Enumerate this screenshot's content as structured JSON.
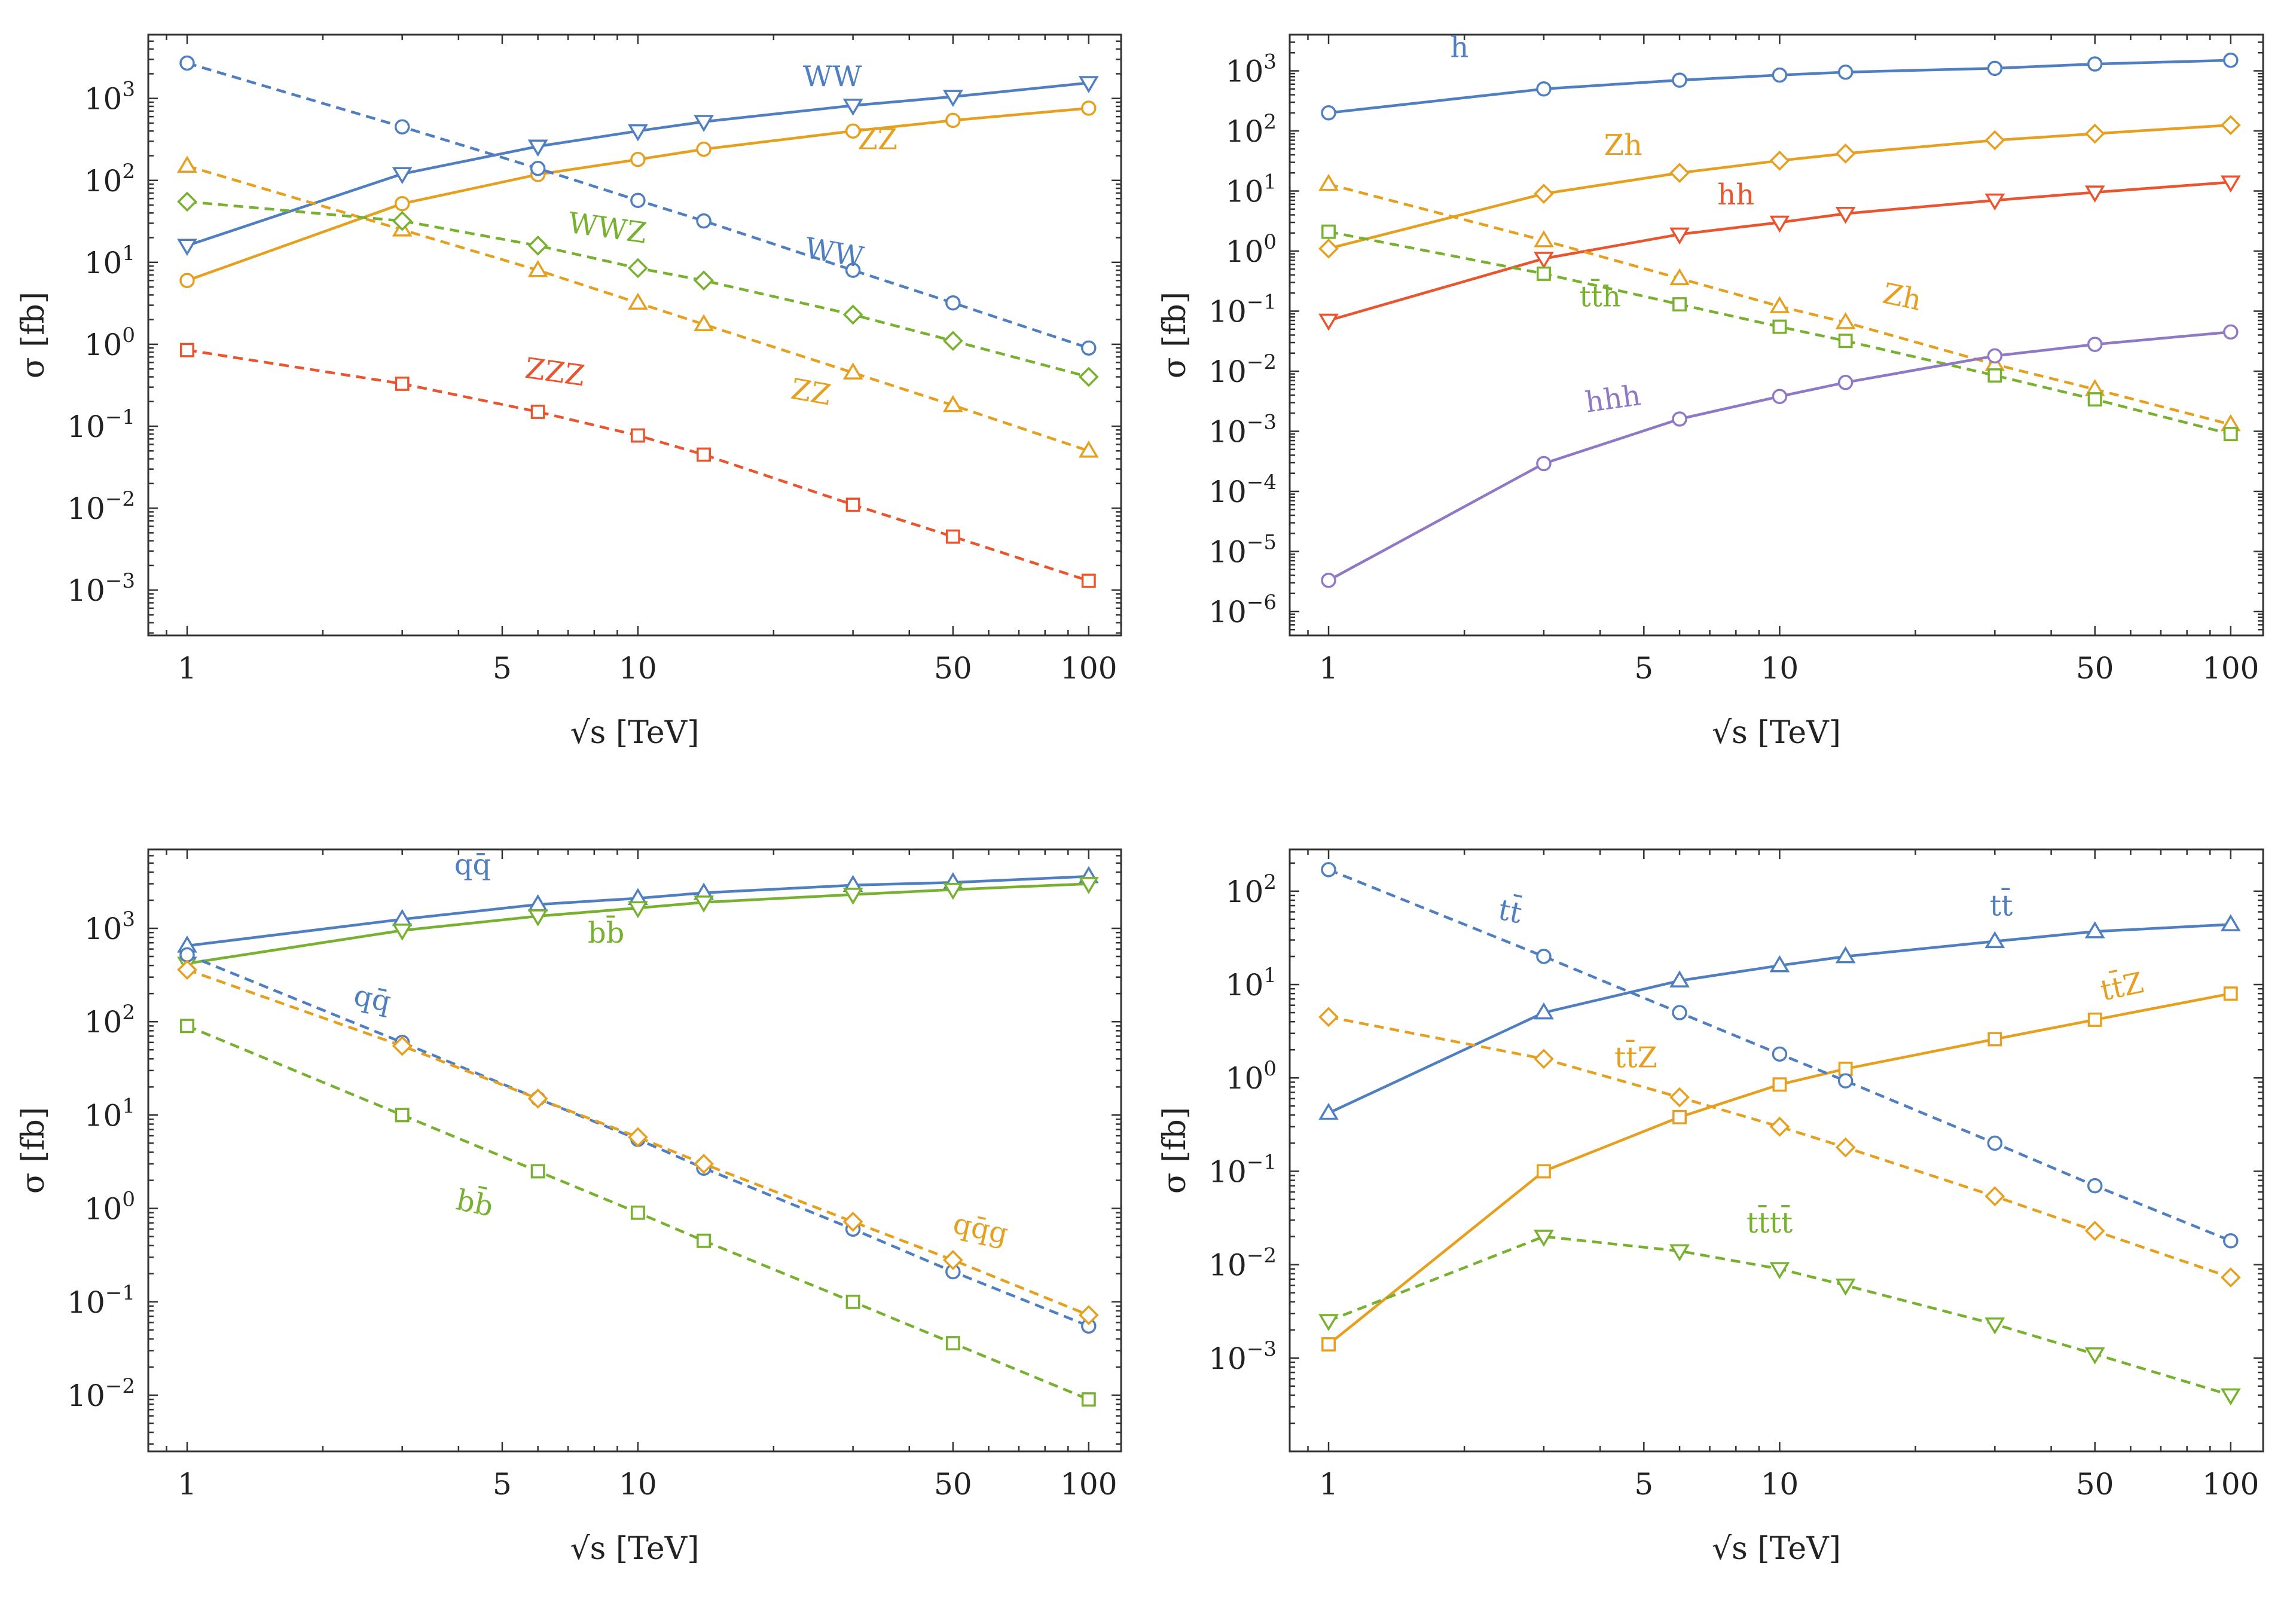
{
  "figure": {
    "xlabel": "√s [TeV]",
    "ylabel": "σ [fb]",
    "x_ticks": [
      1,
      5,
      10,
      50,
      100
    ],
    "colors": {
      "blue": "#4f7fc0",
      "orange": "#e6a020",
      "green": "#78b030",
      "red": "#e8552e",
      "purple": "#8f78c6"
    }
  },
  "chart_data": [
    {
      "type": "line",
      "panel": "top-left",
      "xlabel": "√s [TeV]",
      "ylabel": "σ [fb]",
      "xscale": "log",
      "yscale": "log",
      "xlim": [
        0.82,
        118
      ],
      "ylim": [
        0.00028,
        6000
      ],
      "x_ticks": [
        1,
        5,
        10,
        50,
        100
      ],
      "y_ticks": [
        0.001,
        0.01,
        0.1,
        1,
        10,
        100,
        1000
      ],
      "y_tick_labels": [
        {
          "base": "10",
          "exp": "-3"
        },
        {
          "base": "10",
          "exp": "-2"
        },
        {
          "base": "10",
          "exp": "-1"
        },
        {
          "base": "10",
          "exp": "0"
        },
        {
          "base": "10",
          "exp": "1"
        },
        {
          "base": "10",
          "exp": "2"
        },
        {
          "base": "10",
          "exp": "3"
        }
      ],
      "x": [
        1,
        3,
        6,
        10,
        14,
        30,
        50,
        100
      ],
      "series": [
        {
          "name": "WW",
          "label": "WW",
          "color": "blue",
          "dashed": false,
          "marker": "tri-down",
          "values": [
            16,
            120,
            260,
            400,
            520,
            820,
            1050,
            1550
          ],
          "label_at": [
            27,
            1400
          ],
          "label_rot": 0
        },
        {
          "name": "ZZ",
          "label": "ZZ",
          "color": "orange",
          "dashed": false,
          "marker": "circle",
          "values": [
            6,
            52,
            118,
            180,
            240,
            400,
            540,
            760
          ],
          "label_at": [
            34,
            240
          ],
          "label_rot": 0
        },
        {
          "name": "WW",
          "label": "WW",
          "color": "blue",
          "dashed": true,
          "marker": "circle",
          "values": [
            2700,
            450,
            140,
            57,
            32,
            8,
            3.2,
            0.9
          ],
          "label_at": [
            27,
            10
          ],
          "label_rot": 10
        },
        {
          "name": "ZZ",
          "label": "ZZ",
          "color": "orange",
          "dashed": true,
          "marker": "tri-up",
          "values": [
            150,
            25,
            8,
            3.2,
            1.75,
            0.45,
            0.18,
            0.05
          ],
          "label_at": [
            24,
            0.2
          ],
          "label_rot": 10
        },
        {
          "name": "WWZ",
          "label": "WWZ",
          "color": "green",
          "dashed": true,
          "marker": "diamond",
          "values": [
            55,
            32,
            16,
            8.5,
            6,
            2.3,
            1.1,
            0.4
          ],
          "label_at": [
            8.5,
            20
          ],
          "label_rot": 8
        },
        {
          "name": "ZZZ",
          "label": "ZZZ",
          "color": "red",
          "dashed": true,
          "marker": "square",
          "values": [
            0.85,
            0.33,
            0.15,
            0.077,
            0.045,
            0.011,
            0.0045,
            0.0013
          ],
          "label_at": [
            6.5,
            0.35
          ],
          "label_rot": 8
        }
      ]
    },
    {
      "type": "line",
      "panel": "top-right",
      "xlabel": "√s [TeV]",
      "ylabel": "σ [fb]",
      "xscale": "log",
      "yscale": "log",
      "xlim": [
        0.82,
        118
      ],
      "ylim": [
        4e-07,
        4000
      ],
      "x_ticks": [
        1,
        5,
        10,
        50,
        100
      ],
      "y_ticks": [
        1e-06,
        1e-05,
        0.0001,
        0.001,
        0.01,
        0.1,
        1,
        10,
        100,
        1000
      ],
      "y_tick_labels": [
        {
          "base": "10",
          "exp": "-6"
        },
        {
          "base": "10",
          "exp": "-5"
        },
        {
          "base": "10",
          "exp": "-4"
        },
        {
          "base": "10",
          "exp": "-3"
        },
        {
          "base": "10",
          "exp": "-2"
        },
        {
          "base": "10",
          "exp": "-1"
        },
        {
          "base": "10",
          "exp": "0"
        },
        {
          "base": "10",
          "exp": "1"
        },
        {
          "base": "10",
          "exp": "2"
        },
        {
          "base": "10",
          "exp": "3"
        }
      ],
      "x": [
        1,
        3,
        6,
        10,
        14,
        30,
        50,
        100
      ],
      "series": [
        {
          "name": "h",
          "label": "h",
          "color": "blue",
          "dashed": false,
          "marker": "circle",
          "values": [
            200,
            500,
            700,
            850,
            950,
            1100,
            1300,
            1500
          ],
          "label_at": [
            1.95,
            1700
          ],
          "label_rot": 0
        },
        {
          "name": "Zh",
          "label": "Zh",
          "color": "orange",
          "dashed": false,
          "marker": "diamond",
          "values": [
            1.1,
            9,
            20,
            32,
            42,
            70,
            90,
            125
          ],
          "label_at": [
            4.5,
            40
          ],
          "label_rot": 0
        },
        {
          "name": "hh",
          "label": "hh",
          "color": "red",
          "dashed": false,
          "marker": "tri-down",
          "values": [
            0.07,
            0.75,
            1.9,
            3,
            4.2,
            7,
            9.5,
            14
          ],
          "label_at": [
            8,
            6
          ],
          "label_rot": 0
        },
        {
          "name": "Zh",
          "label": "Zh",
          "color": "orange",
          "dashed": true,
          "marker": "tri-up",
          "values": [
            13,
            1.5,
            0.35,
            0.12,
            0.065,
            0.013,
            0.005,
            0.0013
          ],
          "label_at": [
            18.5,
            0.12
          ],
          "label_rot": 12
        },
        {
          "name": "tth",
          "label": "tt̄h",
          "color": "green",
          "dashed": true,
          "marker": "square",
          "values": [
            2.1,
            0.42,
            0.13,
            0.055,
            0.032,
            0.0085,
            0.0034,
            0.0009
          ],
          "label_at": [
            4,
            0.12
          ],
          "label_rot": 0
        },
        {
          "name": "hhh",
          "label": "hhh",
          "color": "purple",
          "dashed": false,
          "marker": "circle",
          "values": [
            3.3e-06,
            0.00029,
            0.0016,
            0.0038,
            0.0065,
            0.018,
            0.028,
            0.045
          ],
          "label_at": [
            4.3,
            0.0024
          ],
          "label_rot": -8
        }
      ]
    },
    {
      "type": "line",
      "panel": "bottom-left",
      "xlabel": "√s [TeV]",
      "ylabel": "σ [fb]",
      "xscale": "log",
      "yscale": "log",
      "xlim": [
        0.82,
        118
      ],
      "ylim": [
        0.0025,
        7000
      ],
      "x_ticks": [
        1,
        5,
        10,
        50,
        100
      ],
      "y_ticks": [
        0.01,
        0.1,
        1,
        10,
        100,
        1000
      ],
      "y_tick_labels": [
        {
          "base": "10",
          "exp": "-2"
        },
        {
          "base": "10",
          "exp": "-1"
        },
        {
          "base": "10",
          "exp": "0"
        },
        {
          "base": "10",
          "exp": "1"
        },
        {
          "base": "10",
          "exp": "2"
        },
        {
          "base": "10",
          "exp": "3"
        }
      ],
      "x": [
        1,
        3,
        6,
        10,
        14,
        30,
        50,
        100
      ],
      "series": [
        {
          "name": "qq",
          "label": "qq̄",
          "color": "blue",
          "dashed": false,
          "marker": "tri-up",
          "values": [
            650,
            1250,
            1800,
            2100,
            2400,
            2900,
            3100,
            3600
          ],
          "label_at": [
            4.3,
            3800
          ],
          "label_rot": 0
        },
        {
          "name": "bb",
          "label": "bb̄",
          "color": "green",
          "dashed": false,
          "marker": "tri-down",
          "values": [
            420,
            950,
            1350,
            1650,
            1900,
            2300,
            2600,
            3000
          ],
          "label_at": [
            8.5,
            700
          ],
          "label_rot": 0
        },
        {
          "name": "qq",
          "label": "qq̄",
          "color": "blue",
          "dashed": true,
          "marker": "circle",
          "values": [
            520,
            60,
            15,
            5.5,
            2.7,
            0.6,
            0.21,
            0.055
          ],
          "label_at": [
            2.55,
            140
          ],
          "label_rot": 12
        },
        {
          "name": "qqg",
          "label": "qq̄g",
          "color": "orange",
          "dashed": true,
          "marker": "diamond",
          "values": [
            360,
            55,
            15,
            5.8,
            3,
            0.72,
            0.28,
            0.072
          ],
          "label_at": [
            57,
            0.48
          ],
          "label_rot": 12
        },
        {
          "name": "bb",
          "label": "bb̄",
          "color": "green",
          "dashed": true,
          "marker": "square",
          "values": [
            90,
            10,
            2.5,
            0.9,
            0.45,
            0.1,
            0.036,
            0.009
          ],
          "label_at": [
            4.3,
            0.9
          ],
          "label_rot": 12
        }
      ]
    },
    {
      "type": "line",
      "panel": "bottom-right",
      "xlabel": "√s [TeV]",
      "ylabel": "σ [fb]",
      "xscale": "log",
      "yscale": "log",
      "xlim": [
        0.82,
        118
      ],
      "ylim": [
        0.0001,
        280
      ],
      "x_ticks": [
        1,
        5,
        10,
        50,
        100
      ],
      "y_ticks": [
        0.001,
        0.01,
        0.1,
        1,
        10,
        100
      ],
      "y_tick_labels": [
        {
          "base": "10",
          "exp": "-3"
        },
        {
          "base": "10",
          "exp": "-2"
        },
        {
          "base": "10",
          "exp": "-1"
        },
        {
          "base": "10",
          "exp": "0"
        },
        {
          "base": "10",
          "exp": "1"
        },
        {
          "base": "10",
          "exp": "2"
        }
      ],
      "x": [
        1,
        3,
        6,
        10,
        14,
        30,
        50,
        100
      ],
      "series": [
        {
          "name": "tt",
          "label": "tt̄",
          "color": "blue",
          "dashed": false,
          "marker": "tri-up",
          "values": [
            0.42,
            5,
            11,
            16,
            20,
            29,
            37,
            44
          ],
          "label_at": [
            31,
            55
          ],
          "label_rot": 0
        },
        {
          "name": "ttZ",
          "label": "tt̄Z",
          "color": "orange",
          "dashed": false,
          "marker": "square",
          "values": [
            0.0014,
            0.1,
            0.38,
            0.85,
            1.25,
            2.6,
            4.2,
            8
          ],
          "label_at": [
            58,
            7.5
          ],
          "label_rot": -12
        },
        {
          "name": "tt",
          "label": "tt̄",
          "color": "blue",
          "dashed": true,
          "marker": "circle",
          "values": [
            170,
            20,
            5,
            1.8,
            0.93,
            0.2,
            0.07,
            0.018
          ],
          "label_at": [
            2.5,
            48
          ],
          "label_rot": 12
        },
        {
          "name": "ttZ",
          "label": "tt̄Z",
          "color": "orange",
          "dashed": true,
          "marker": "diamond",
          "values": [
            4.5,
            1.6,
            0.62,
            0.3,
            0.18,
            0.054,
            0.023,
            0.0073
          ],
          "label_at": [
            4.8,
            1.3
          ],
          "label_rot": 0
        },
        {
          "name": "tttt",
          "label": "tt̄tt̄",
          "color": "green",
          "dashed": true,
          "marker": "tri-down",
          "values": [
            0.0025,
            0.02,
            0.014,
            0.009,
            0.006,
            0.0023,
            0.0011,
            0.0004
          ],
          "label_at": [
            9.5,
            0.022
          ],
          "label_rot": 0
        }
      ]
    }
  ]
}
